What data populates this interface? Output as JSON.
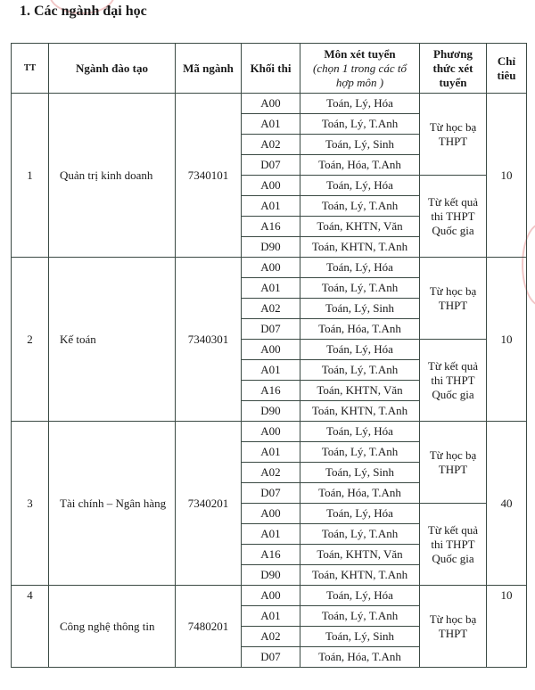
{
  "heading": "1. Các ngành đại học",
  "headers": {
    "tt": "TT",
    "nganh": "Ngành đào tạo",
    "ma": "Mã ngành",
    "khoi": "Khối thi",
    "mon": "Môn xét tuyển",
    "mon_note": "(chọn 1 trong các tổ hợp môn )",
    "phuong_thuc": "Phương thức xét tuyển",
    "chi_tieu": "Chỉ tiêu"
  },
  "programs": [
    {
      "tt": "1",
      "name": "Quản trị kinh doanh",
      "code": "7340101",
      "quota": "10",
      "methods": [
        {
          "label": "Từ học bạ THPT",
          "combos": [
            [
              "A00",
              "Toán, Lý, Hóa"
            ],
            [
              "A01",
              "Toán, Lý, T.Anh"
            ],
            [
              "A02",
              "Toán, Lý, Sinh"
            ],
            [
              "D07",
              "Toán, Hóa, T.Anh"
            ]
          ]
        },
        {
          "label": "Từ kết quả thi THPT Quốc gia",
          "combos": [
            [
              "A00",
              "Toán, Lý, Hóa"
            ],
            [
              "A01",
              "Toán, Lý, T.Anh"
            ],
            [
              "A16",
              "Toán, KHTN, Văn"
            ],
            [
              "D90",
              "Toán, KHTN, T.Anh"
            ]
          ]
        }
      ]
    },
    {
      "tt": "2",
      "name": "Kế toán",
      "code": "7340301",
      "quota": "10",
      "methods": [
        {
          "label": "Từ học bạ THPT",
          "combos": [
            [
              "A00",
              "Toán, Lý, Hóa"
            ],
            [
              "A01",
              "Toán, Lý, T.Anh"
            ],
            [
              "A02",
              "Toán, Lý, Sinh"
            ],
            [
              "D07",
              "Toán, Hóa, T.Anh"
            ]
          ]
        },
        {
          "label": "Từ kết quả thi THPT Quốc gia",
          "combos": [
            [
              "A00",
              "Toán, Lý, Hóa"
            ],
            [
              "A01",
              "Toán, Lý, T.Anh"
            ],
            [
              "A16",
              "Toán, KHTN, Văn"
            ],
            [
              "D90",
              "Toán, KHTN, T.Anh"
            ]
          ]
        }
      ]
    },
    {
      "tt": "3",
      "name": "Tài chính – Ngân hàng",
      "code": "7340201",
      "quota": "40",
      "methods": [
        {
          "label": "Từ học bạ THPT",
          "combos": [
            [
              "A00",
              "Toán, Lý, Hóa"
            ],
            [
              "A01",
              "Toán, Lý, T.Anh"
            ],
            [
              "A02",
              "Toán, Lý, Sinh"
            ],
            [
              "D07",
              "Toán, Hóa, T.Anh"
            ]
          ]
        },
        {
          "label": "Từ kết quả thi THPT Quốc gia",
          "combos": [
            [
              "A00",
              "Toán, Lý, Hóa"
            ],
            [
              "A01",
              "Toán, Lý, T.Anh"
            ],
            [
              "A16",
              "Toán, KHTN, Văn"
            ],
            [
              "D90",
              "Toán, KHTN, T.Anh"
            ]
          ]
        }
      ]
    },
    {
      "tt": "4",
      "name": "Công nghệ thông tin",
      "code": "7480201",
      "quota": "10",
      "methods": [
        {
          "label": "Từ học bạ THPT",
          "combos": [
            [
              "A00",
              "Toán, Lý, Hóa"
            ],
            [
              "A01",
              "Toán, Lý, T.Anh"
            ],
            [
              "A02",
              "Toán, Lý, Sinh"
            ],
            [
              "D07",
              "Toán, Hóa, T.Anh"
            ]
          ]
        }
      ]
    }
  ]
}
